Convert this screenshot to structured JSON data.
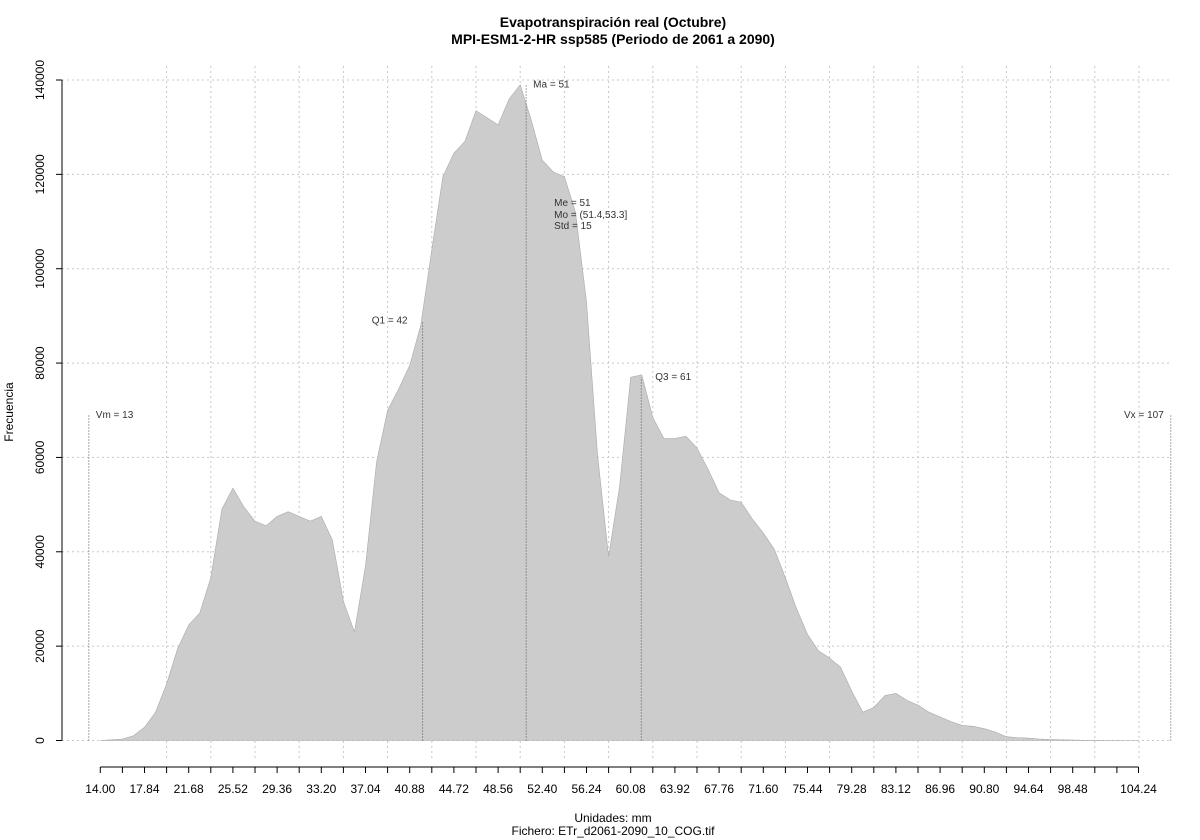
{
  "chart_data": {
    "type": "area",
    "title": "Evapotranspiración real (Octubre)",
    "subtitle": "MPI-ESM1-2-HR ssp585 (Periodo de 2061 a 2090)",
    "xlabel": "Unidades: mm",
    "file_label": "Fichero: ETr_d2061-2090_10_COG.tif",
    "ylabel": "Frecuencia",
    "xlim": [
      13,
      107
    ],
    "ylim": [
      0,
      140000
    ],
    "grid": true,
    "x_ticks": [
      14.0,
      15.92,
      17.84,
      19.76,
      21.68,
      23.6,
      25.52,
      27.44,
      29.36,
      31.28,
      33.2,
      35.12,
      37.04,
      38.96,
      40.88,
      42.8,
      44.72,
      46.64,
      48.56,
      50.48,
      52.4,
      54.32,
      56.24,
      58.16,
      60.08,
      62.0,
      63.92,
      65.84,
      67.76,
      69.68,
      71.6,
      73.52,
      75.44,
      77.36,
      79.28,
      81.2,
      83.12,
      85.04,
      86.96,
      88.88,
      90.8,
      92.72,
      94.64,
      96.56,
      98.48,
      100.4,
      102.32,
      104.24
    ],
    "x_tick_labels": [
      "14.00",
      "",
      "17.84",
      "",
      "21.68",
      "",
      "25.52",
      "",
      "29.36",
      "",
      "33.20",
      "",
      "37.04",
      "",
      "40.88",
      "",
      "44.72",
      "",
      "48.56",
      "",
      "52.40",
      "",
      "56.24",
      "",
      "60.08",
      "",
      "63.92",
      "",
      "67.76",
      "",
      "71.60",
      "",
      "75.44",
      "",
      "79.28",
      "",
      "83.12",
      "",
      "86.96",
      "",
      "90.80",
      "",
      "94.64",
      "",
      "98.48",
      "",
      "",
      "104.24"
    ],
    "y_ticks": [
      0,
      20000,
      40000,
      60000,
      80000,
      100000,
      120000,
      140000
    ],
    "y_tick_labels": [
      "0",
      "20000",
      "40000",
      "60000",
      "80000",
      "100000",
      "120000",
      "140000"
    ],
    "x": [
      14.0,
      15.92,
      16.88,
      17.84,
      18.8,
      19.76,
      20.72,
      21.68,
      22.64,
      23.6,
      24.56,
      25.52,
      26.48,
      27.44,
      28.4,
      29.36,
      30.32,
      31.28,
      32.24,
      33.2,
      34.16,
      35.12,
      36.08,
      37.04,
      38.0,
      38.96,
      39.92,
      40.88,
      41.84,
      42.8,
      43.76,
      44.72,
      45.68,
      46.64,
      47.6,
      48.56,
      49.52,
      50.48,
      51.44,
      52.4,
      53.36,
      54.32,
      55.28,
      56.24,
      57.2,
      58.16,
      59.12,
      60.08,
      61.04,
      62.0,
      62.96,
      63.92,
      64.88,
      65.84,
      66.8,
      67.76,
      68.72,
      69.68,
      70.64,
      71.6,
      72.56,
      73.52,
      74.48,
      75.44,
      76.4,
      77.36,
      78.32,
      79.28,
      80.24,
      81.2,
      82.16,
      83.12,
      84.08,
      85.04,
      86.0,
      86.96,
      87.92,
      88.88,
      89.84,
      90.8,
      91.76,
      92.72,
      93.68,
      94.64,
      95.6,
      96.56,
      97.52,
      98.48,
      99.44,
      100.4,
      101.36,
      102.32,
      103.28,
      104.24
    ],
    "values": [
      0,
      300,
      1000,
      2800,
      6000,
      12000,
      19500,
      24500,
      27000,
      34500,
      49000,
      53500,
      49500,
      46500,
      45500,
      47500,
      48500,
      47500,
      46500,
      47500,
      42500,
      29500,
      23000,
      37000,
      59000,
      70000,
      74500,
      79500,
      88000,
      104000,
      119500,
      124500,
      127000,
      133500,
      132000,
      130500,
      136000,
      139000,
      131500,
      123000,
      120500,
      119500,
      112000,
      93000,
      60500,
      39000,
      54000,
      77000,
      77500,
      68500,
      64000,
      64000,
      64500,
      62000,
      57500,
      52500,
      51000,
      50500,
      47000,
      44000,
      40500,
      34500,
      28000,
      22500,
      19000,
      17500,
      15500,
      10500,
      6000,
      7000,
      9500,
      10000,
      8500,
      7500,
      6000,
      5000,
      4000,
      3200,
      3000,
      2500,
      1800,
      800,
      600,
      500,
      300,
      200,
      150,
      100,
      50,
      30,
      20,
      10,
      0,
      0
    ],
    "annotations": {
      "vm": {
        "label": "Vm = 13",
        "x": 13,
        "y": 69000
      },
      "q1": {
        "label": "Q1 = 42",
        "x": 42,
        "y": 89000
      },
      "ma": {
        "label": "Ma = 51",
        "x": 51,
        "y": 139000
      },
      "me": {
        "label": "Me = 51"
      },
      "mo": {
        "label": "Mo = (51.4,53.3]"
      },
      "std": {
        "label": "Std = 15"
      },
      "q3": {
        "label": "Q3 = 61",
        "x": 61,
        "y": 77000
      },
      "vx": {
        "label": "Vx = 107",
        "x": 107,
        "y": 69000
      }
    },
    "colors": {
      "fill": "#cccccc",
      "stroke": "#aaaaaa"
    }
  }
}
